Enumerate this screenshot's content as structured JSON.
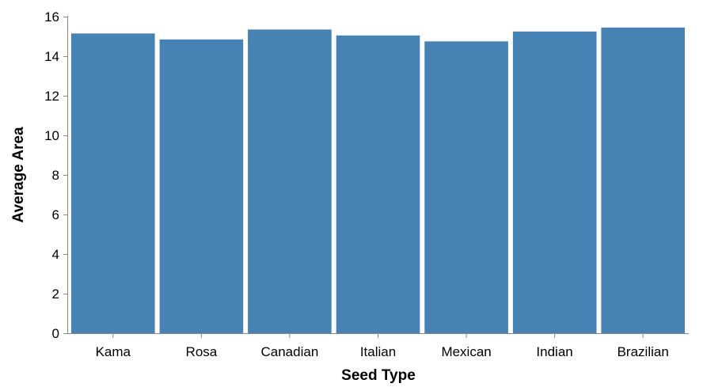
{
  "chart_data": {
    "type": "bar",
    "xlabel": "Seed Type",
    "ylabel": "Average Area",
    "categories": [
      "Kama",
      "Rosa",
      "Canadian",
      "Italian",
      "Mexican",
      "Indian",
      "Brazilian"
    ],
    "values": [
      15.15,
      14.85,
      15.35,
      15.05,
      14.75,
      15.25,
      15.45
    ],
    "ylim": [
      0,
      16
    ],
    "yticks": [
      0,
      2,
      4,
      6,
      8,
      10,
      12,
      14,
      16
    ],
    "grid": false,
    "bar_color": "#4682b4"
  }
}
